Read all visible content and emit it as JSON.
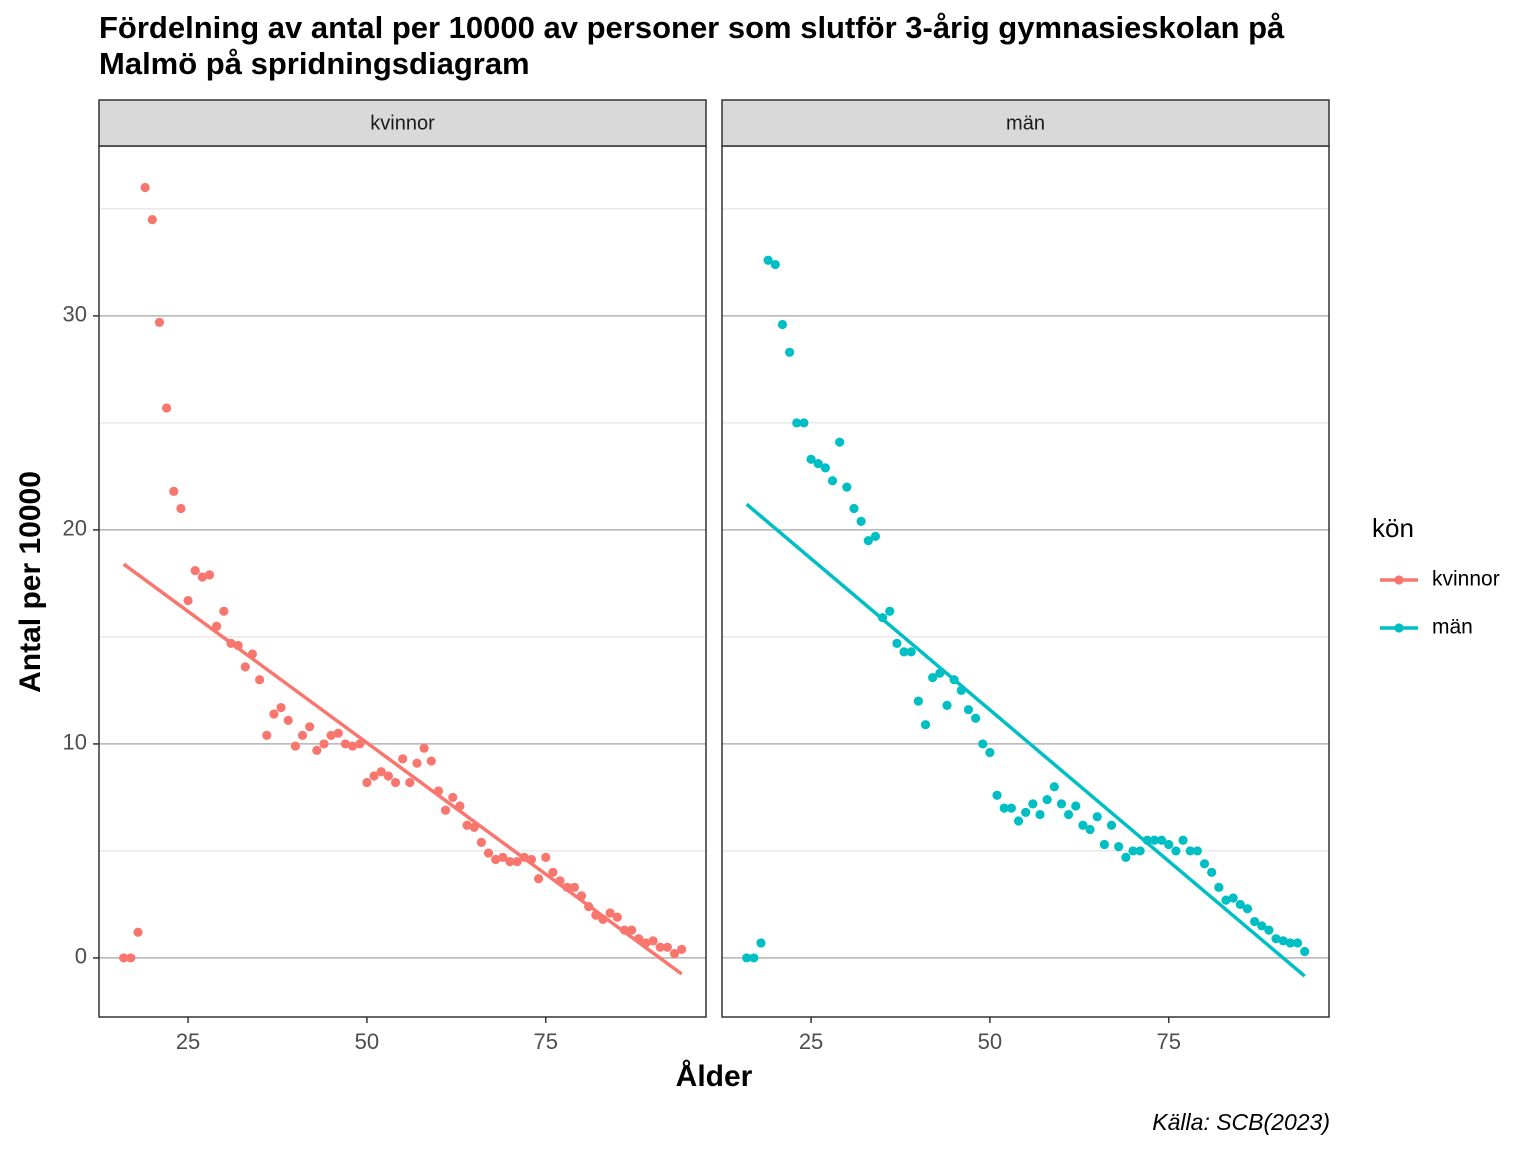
{
  "chart_data": {
    "type": "scatter",
    "title": "Fördelning av antal per 10000 av personer som slutför 3-årig gymnasieskolan på Malmö på spridningsdiagram",
    "xlabel": "Ålder",
    "ylabel": "Antal per 10000",
    "legend_title": "kön",
    "caption": "Källa: SCB(2023)",
    "xlim": [
      12.55,
      97.4
    ],
    "ylim": [
      -2.76,
      37.94
    ],
    "xticks": [
      25,
      50,
      75
    ],
    "yticks": [
      0,
      10,
      20,
      30
    ],
    "yminorticks": [
      5,
      15,
      25,
      35
    ],
    "grid": true,
    "legend": "right",
    "x": [
      16,
      17,
      18,
      19,
      20,
      21,
      22,
      23,
      24,
      25,
      26,
      27,
      28,
      29,
      30,
      31,
      32,
      33,
      34,
      35,
      36,
      37,
      38,
      39,
      40,
      41,
      42,
      43,
      44,
      45,
      46,
      47,
      48,
      49,
      50,
      51,
      52,
      53,
      54,
      55,
      56,
      57,
      58,
      59,
      60,
      61,
      62,
      63,
      64,
      65,
      66,
      67,
      68,
      69,
      70,
      71,
      72,
      73,
      74,
      75,
      76,
      77,
      78,
      79,
      80,
      81,
      82,
      83,
      84,
      85,
      86,
      87,
      88,
      89,
      90,
      91,
      92,
      93,
      94
    ],
    "series": [
      {
        "name": "kvinnor",
        "color": "#F8766D",
        "values": [
          0,
          0,
          1.2,
          36.0,
          34.5,
          29.7,
          25.7,
          21.8,
          21.0,
          16.7,
          18.1,
          17.8,
          17.9,
          15.5,
          16.2,
          14.7,
          14.6,
          13.6,
          14.2,
          13.0,
          10.4,
          11.4,
          11.7,
          11.1,
          9.9,
          10.4,
          10.8,
          9.7,
          10.0,
          10.4,
          10.5,
          10.0,
          9.9,
          10.0,
          8.2,
          8.5,
          8.7,
          8.5,
          8.2,
          9.3,
          8.2,
          9.1,
          9.8,
          9.2,
          7.8,
          6.9,
          7.5,
          7.1,
          6.2,
          6.1,
          5.4,
          4.9,
          4.6,
          4.7,
          4.5,
          4.5,
          4.7,
          4.6,
          3.7,
          4.7,
          4.0,
          3.6,
          3.3,
          3.3,
          2.9,
          2.4,
          2.0,
          1.8,
          2.1,
          1.9,
          1.3,
          1.3,
          0.9,
          0.7,
          0.8,
          0.5,
          0.5,
          0.2,
          0.4
        ],
        "fit": {
          "x": [
            16,
            94
          ],
          "values": [
            18.4,
            -0.75
          ]
        }
      },
      {
        "name": "män",
        "color": "#00BFC4",
        "values": [
          0,
          0,
          0.7,
          32.6,
          32.4,
          29.6,
          28.3,
          25.0,
          25.0,
          23.3,
          23.1,
          22.9,
          22.3,
          24.1,
          22.0,
          21.0,
          20.4,
          19.5,
          19.7,
          15.9,
          16.2,
          14.7,
          14.3,
          14.3,
          12.0,
          10.9,
          13.1,
          13.3,
          11.8,
          13.0,
          12.5,
          11.6,
          11.2,
          10.0,
          9.6,
          7.6,
          7.0,
          7.0,
          6.4,
          6.8,
          7.2,
          6.7,
          7.4,
          8.0,
          7.2,
          6.7,
          7.1,
          6.2,
          6.0,
          6.6,
          5.3,
          6.2,
          5.2,
          4.7,
          5.0,
          5.0,
          5.5,
          5.5,
          5.5,
          5.3,
          5.0,
          5.5,
          5.0,
          5.0,
          4.4,
          4.0,
          3.3,
          2.7,
          2.8,
          2.5,
          2.3,
          1.7,
          1.5,
          1.3,
          0.9,
          0.8,
          0.7,
          0.7,
          0.3
        ],
        "fit": {
          "x": [
            16,
            94
          ],
          "values": [
            21.2,
            -0.85
          ]
        }
      }
    ]
  }
}
